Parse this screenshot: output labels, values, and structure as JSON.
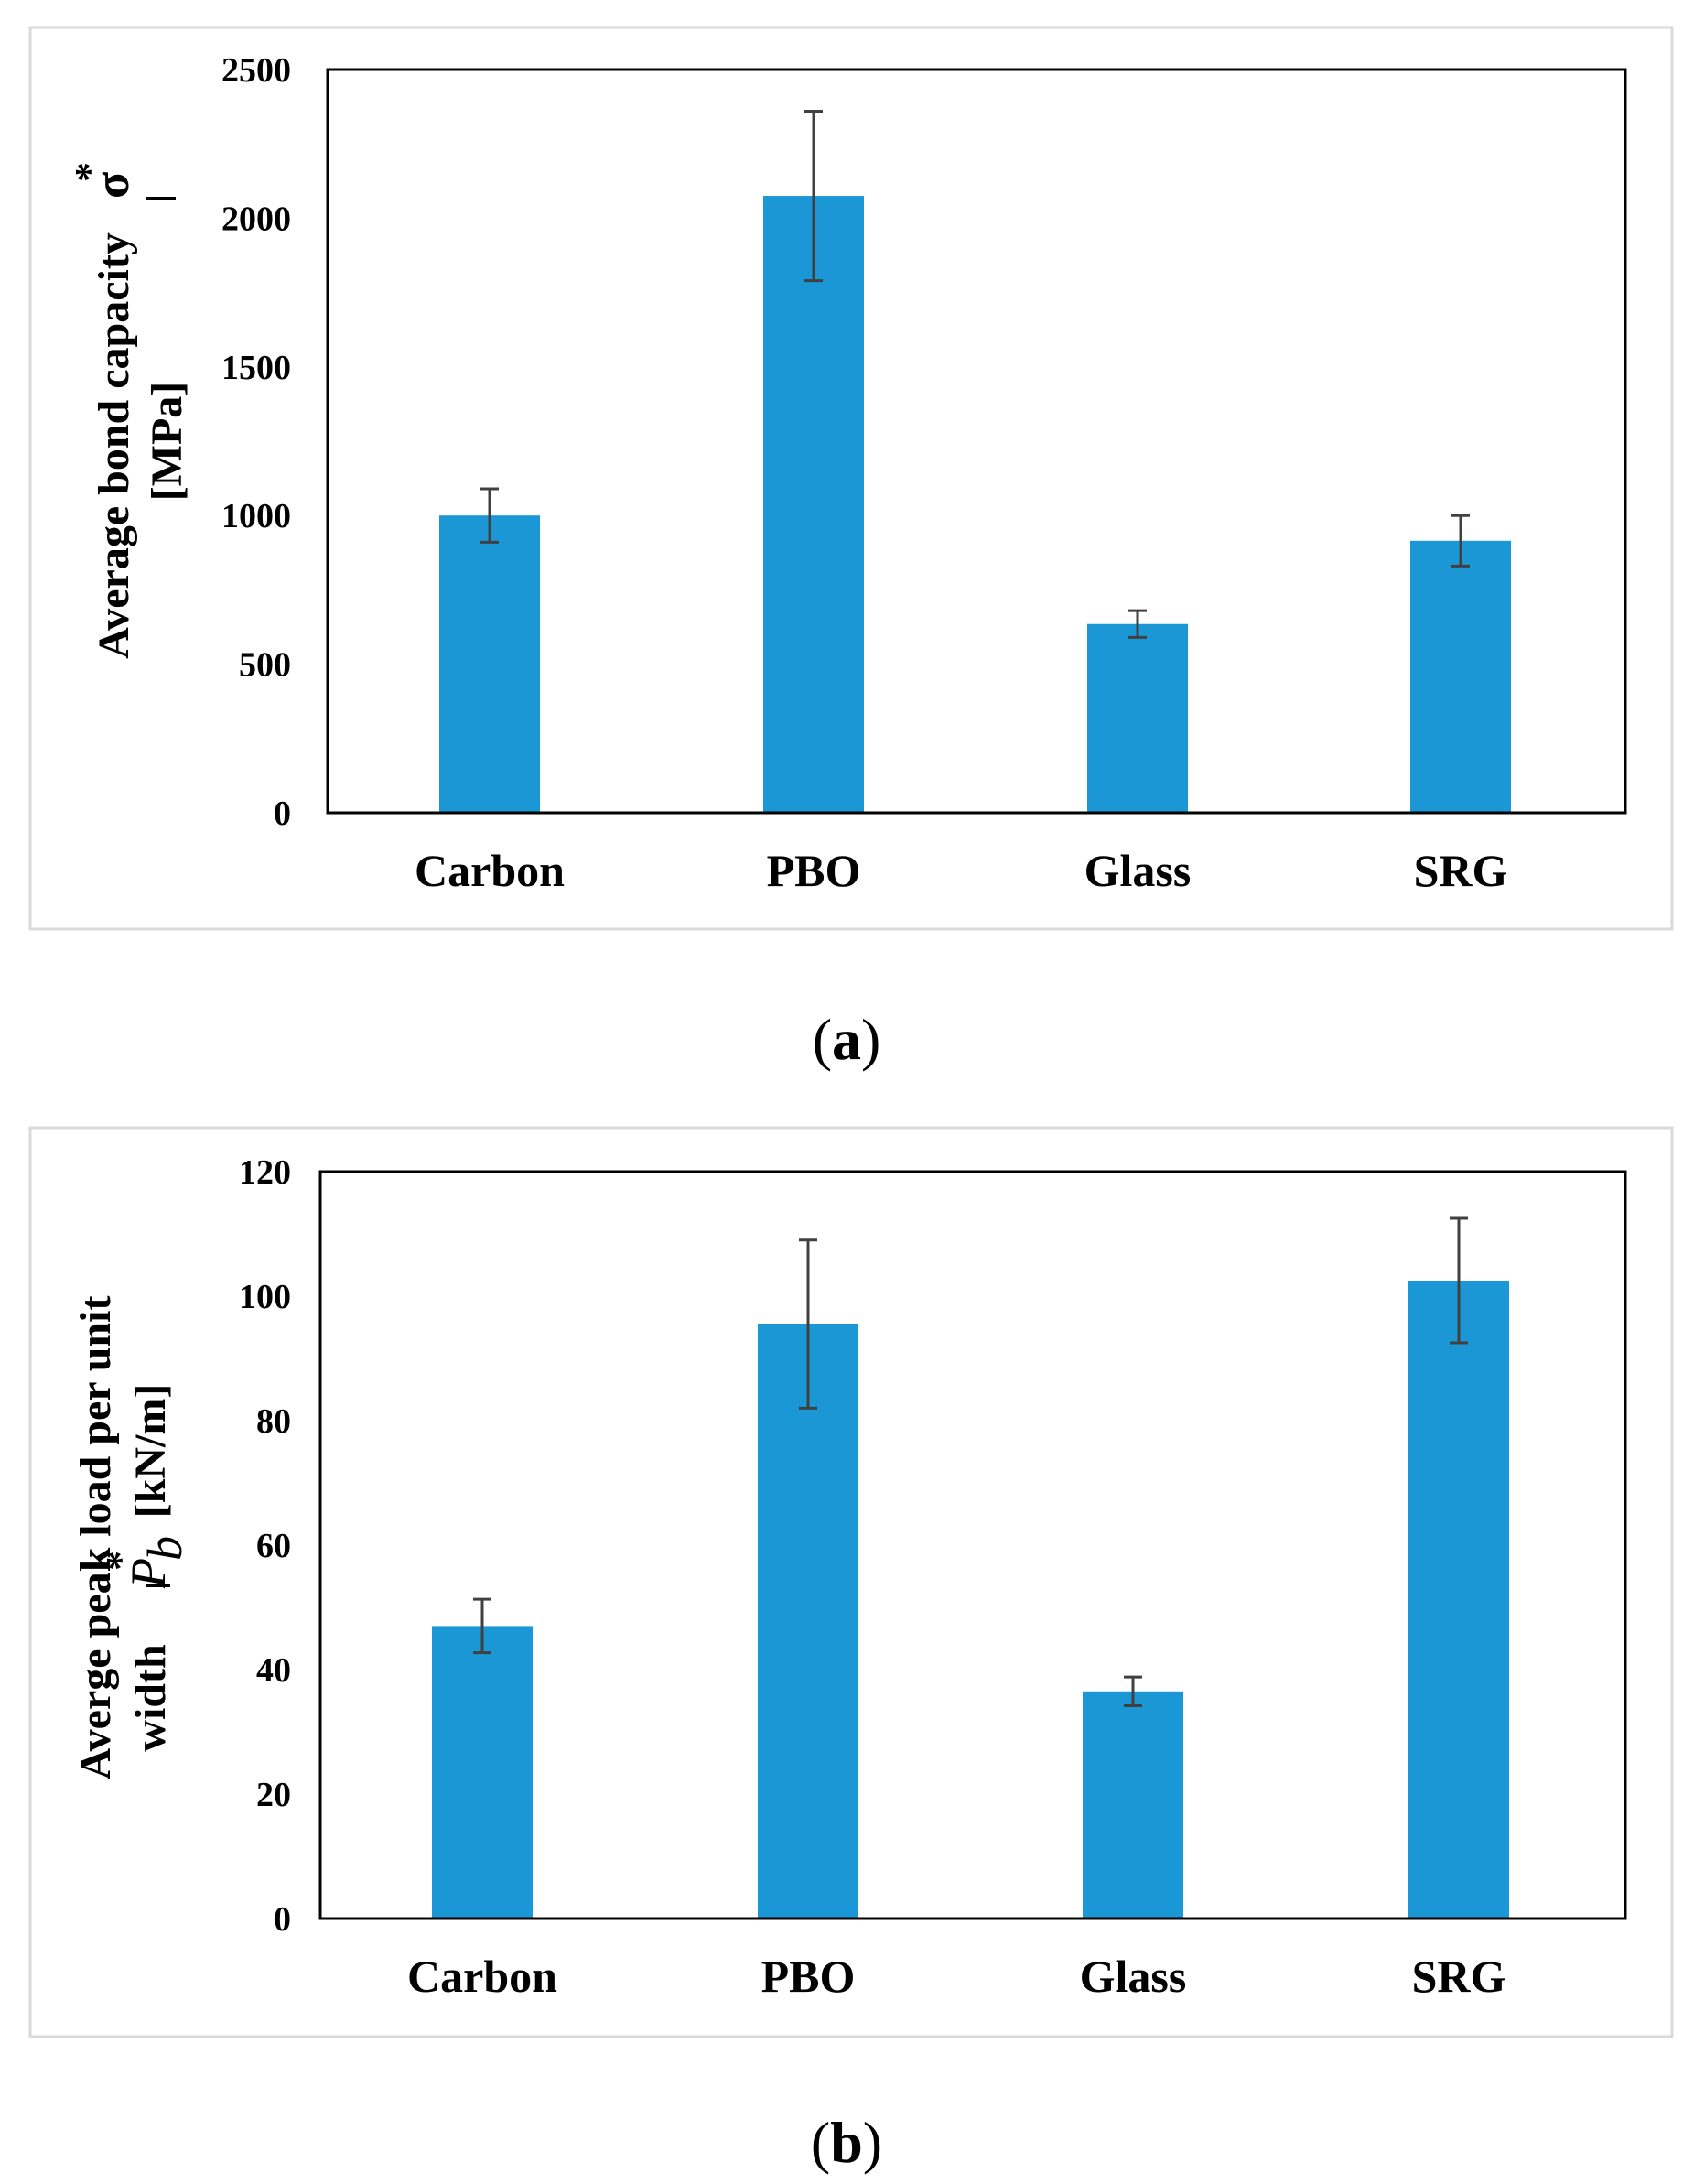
{
  "chart_data": [
    {
      "type": "bar",
      "panel_label": "a",
      "categories": [
        "Carbon",
        "PBO",
        "Glass",
        "SRG"
      ],
      "values": [
        1000,
        2075,
        635,
        915
      ],
      "errors": [
        90,
        285,
        45,
        85
      ],
      "ylim": [
        0,
        2500
      ],
      "yticks": [
        0,
        500,
        1000,
        1500,
        2000,
        2500
      ],
      "ylabel": "Average bond capacity",
      "ylabel_symbol": "σ",
      "ylabel_star": "*",
      "ylabel_unit": "[MPa]",
      "xlabel": "",
      "grid": false,
      "bar_color": "#1b97d6"
    },
    {
      "type": "bar",
      "panel_label": "b",
      "categories": [
        "Carbon",
        "PBO",
        "Glass",
        "SRG"
      ],
      "values": [
        47,
        95.5,
        36.5,
        102.5
      ],
      "errors": [
        4.3,
        13.5,
        2.3,
        10
      ],
      "ylim": [
        0,
        120
      ],
      "yticks": [
        0,
        20,
        40,
        60,
        80,
        100,
        120
      ],
      "ylabel": "Averge peak load per unit",
      "ylabel_line2": "width",
      "ylabel_symbol": "P",
      "ylabel_subscript": "b",
      "ylabel_star": "*",
      "ylabel_unit": "[kN/m]",
      "xlabel": "",
      "grid": false,
      "bar_color": "#1b97d6"
    }
  ]
}
